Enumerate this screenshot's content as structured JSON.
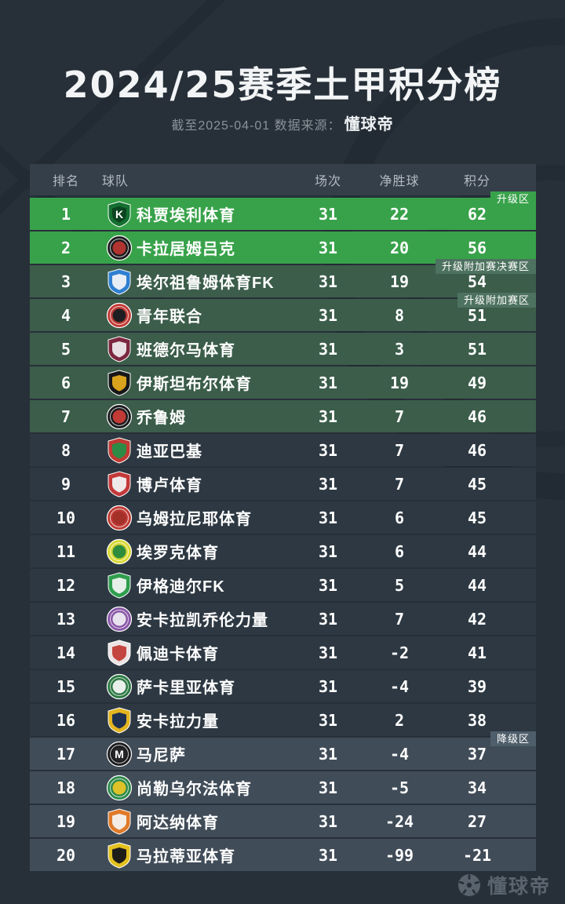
{
  "header": {
    "title": "2024/25赛季土甲积分榜",
    "subtitle_prefix": "截至2025-04-01 数据来源：",
    "source_brand": "懂球帝"
  },
  "table": {
    "columns": {
      "rank": "排名",
      "team": "球队",
      "played": "场次",
      "goal_diff": "净胜球",
      "points": "积分"
    },
    "rows": [
      {
        "rank": "1",
        "team": "科贾埃利体育",
        "played": "31",
        "gd": "22",
        "points": "62",
        "zone": "promotion",
        "tag": "升级区",
        "tag_style": "promotion",
        "logo": {
          "shape": "shield",
          "c1": "#157031",
          "c2": "#0c4420",
          "letter": "K"
        }
      },
      {
        "rank": "2",
        "team": "卡拉居姆吕克",
        "played": "31",
        "gd": "20",
        "points": "56",
        "zone": "promotion",
        "logo": {
          "shape": "circle",
          "c1": "#1c1c1e",
          "c2": "#b23430",
          "letter": ""
        }
      },
      {
        "rank": "3",
        "team": "埃尔祖鲁姆体育FK",
        "played": "31",
        "gd": "19",
        "points": "54",
        "zone": "playoff",
        "tag": "升级附加赛决赛区",
        "tag_style": "playoff",
        "logo": {
          "shape": "shield",
          "c1": "#2f7fd1",
          "c2": "#e8eef5",
          "letter": ""
        }
      },
      {
        "rank": "4",
        "team": "青年联合",
        "played": "31",
        "gd": "8",
        "points": "51",
        "zone": "playoff",
        "tag": "升级附加赛区",
        "tag_style": "playoff",
        "logo": {
          "shape": "circle",
          "c1": "#c03a35",
          "c2": "#1e1e22",
          "letter": ""
        }
      },
      {
        "rank": "5",
        "team": "班德尔马体育",
        "played": "31",
        "gd": "3",
        "points": "51",
        "zone": "playoff",
        "logo": {
          "shape": "shield",
          "c1": "#7c2740",
          "c2": "#e8e0e4",
          "letter": ""
        }
      },
      {
        "rank": "6",
        "team": "伊斯坦布尔体育",
        "played": "31",
        "gd": "19",
        "points": "49",
        "zone": "playoff",
        "logo": {
          "shape": "shield",
          "c1": "#17171a",
          "c2": "#d9a31d",
          "letter": ""
        }
      },
      {
        "rank": "7",
        "team": "乔鲁姆",
        "played": "31",
        "gd": "7",
        "points": "46",
        "zone": "playoff",
        "logo": {
          "shape": "circle",
          "c1": "#1b1b1e",
          "c2": "#c23a35",
          "letter": ""
        }
      },
      {
        "rank": "8",
        "team": "迪亚巴基",
        "played": "31",
        "gd": "7",
        "points": "46",
        "zone": "normal",
        "logo": {
          "shape": "shield",
          "c1": "#bf3a33",
          "c2": "#2c8c46",
          "letter": ""
        }
      },
      {
        "rank": "9",
        "team": "博卢体育",
        "played": "31",
        "gd": "7",
        "points": "45",
        "zone": "normal",
        "logo": {
          "shape": "shield",
          "c1": "#c4393a",
          "c2": "#efe9e9",
          "letter": ""
        }
      },
      {
        "rank": "10",
        "team": "乌姆拉尼耶体育",
        "played": "31",
        "gd": "6",
        "points": "45",
        "zone": "normal",
        "logo": {
          "shape": "circle",
          "c1": "#bf3a33",
          "c2": "#a33029",
          "letter": ""
        }
      },
      {
        "rank": "11",
        "team": "埃罗克体育",
        "played": "31",
        "gd": "6",
        "points": "44",
        "zone": "normal",
        "logo": {
          "shape": "circle",
          "c1": "#d8d832",
          "c2": "#2f8c3c",
          "letter": ""
        }
      },
      {
        "rank": "12",
        "team": "伊格迪尔FK",
        "played": "31",
        "gd": "5",
        "points": "44",
        "zone": "normal",
        "logo": {
          "shape": "shield",
          "c1": "#2f9e4e",
          "c2": "#e6f0e8",
          "letter": ""
        }
      },
      {
        "rank": "13",
        "team": "安卡拉凯乔伦力量",
        "played": "31",
        "gd": "7",
        "points": "42",
        "zone": "normal",
        "logo": {
          "shape": "circle",
          "c1": "#8a57a8",
          "c2": "#e8e2ee",
          "letter": ""
        }
      },
      {
        "rank": "14",
        "team": "佩迪卡体育",
        "played": "31",
        "gd": "-2",
        "points": "41",
        "zone": "normal",
        "logo": {
          "shape": "shield",
          "c1": "#ece4e4",
          "c2": "#c4453f",
          "letter": ""
        }
      },
      {
        "rank": "15",
        "team": "萨卡里亚体育",
        "played": "31",
        "gd": "-4",
        "points": "39",
        "zone": "normal",
        "logo": {
          "shape": "circle",
          "c1": "#2d7a44",
          "c2": "#e9efe9",
          "letter": ""
        }
      },
      {
        "rank": "16",
        "team": "安卡拉力量",
        "played": "31",
        "gd": "2",
        "points": "38",
        "zone": "normal",
        "logo": {
          "shape": "shield",
          "c1": "#e3b41f",
          "c2": "#20304f",
          "letter": ""
        }
      },
      {
        "rank": "17",
        "team": "马尼萨",
        "played": "31",
        "gd": "-4",
        "points": "37",
        "zone": "relegation",
        "tag": "降级区",
        "tag_style": "relegation",
        "logo": {
          "shape": "circle",
          "c1": "#1c1c1f",
          "c2": "#26262a",
          "letter": "M"
        }
      },
      {
        "rank": "18",
        "team": "尚勒乌尔法体育",
        "played": "31",
        "gd": "-5",
        "points": "34",
        "zone": "relegation",
        "logo": {
          "shape": "circle",
          "c1": "#2e8a4a",
          "c2": "#ddc22a",
          "letter": ""
        }
      },
      {
        "rank": "19",
        "team": "阿达纳体育",
        "played": "31",
        "gd": "-24",
        "points": "27",
        "zone": "relegation",
        "logo": {
          "shape": "shield",
          "c1": "#e07a28",
          "c2": "#f3ede6",
          "letter": ""
        }
      },
      {
        "rank": "20",
        "team": "马拉蒂亚体育",
        "played": "31",
        "gd": "-99",
        "points": "-21",
        "zone": "relegation",
        "logo": {
          "shape": "shield",
          "c1": "#e3c11f",
          "c2": "#1e1c18",
          "letter": ""
        }
      }
    ]
  },
  "colors": {
    "page_bg": "#273039",
    "header_bg": "#353f4a",
    "promotion_row": "#38a24a",
    "playoff_row": "#3b5d4a",
    "normal_row": "#2d3842",
    "relegation_row": "#404c58",
    "tag_promotion": "#38a24a",
    "tag_playoff": "#4e7260",
    "tag_relegation": "#4f5e6b"
  },
  "footer": {
    "watermark": "懂球帝"
  }
}
